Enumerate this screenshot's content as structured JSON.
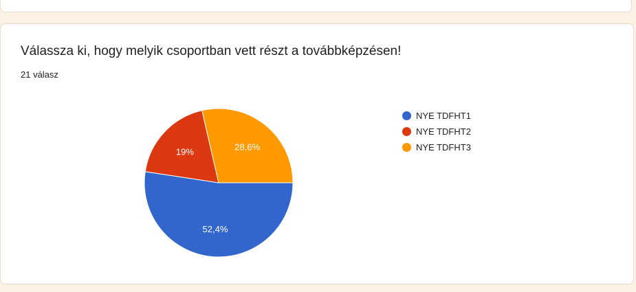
{
  "colors": {
    "accent": "#e0461e",
    "series": [
      "#3366cc",
      "#dc3912",
      "#ff9900"
    ]
  },
  "question": {
    "title": "Válassza ki, hogy melyik csoportban vett részt a továbbképzésen!",
    "response_count": "21 válasz"
  },
  "chart_data": {
    "type": "pie",
    "categories": [
      "NYE TDFHT1",
      "NYE TDFHT2",
      "NYE TDFHT3"
    ],
    "values": [
      52.4,
      19,
      28.6
    ],
    "value_labels": [
      "52,4%",
      "19%",
      "28,6%"
    ],
    "legend_position": "right"
  }
}
